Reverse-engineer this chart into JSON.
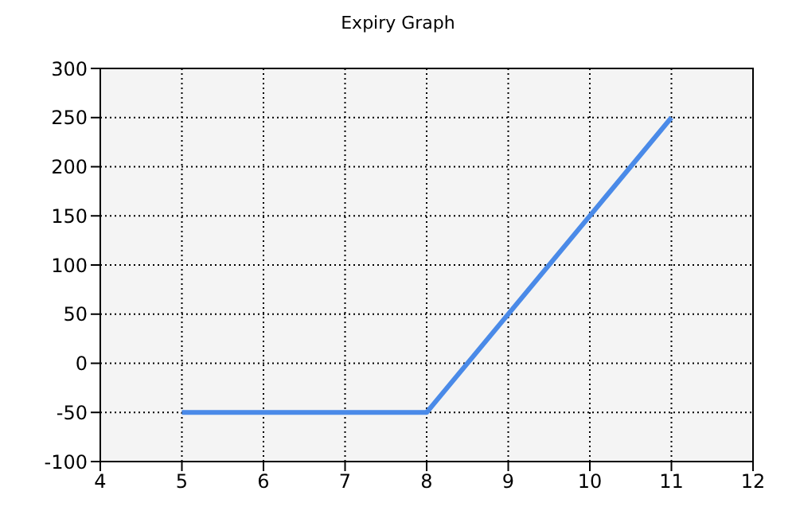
{
  "chart_data": {
    "type": "line",
    "title": "Expiry Graph",
    "x": [
      5,
      8,
      11
    ],
    "series": [
      {
        "color": "#4a8ae8",
        "values": [
          -50,
          -50,
          250
        ]
      }
    ],
    "xlim": [
      4,
      12
    ],
    "xticks": [
      4,
      5,
      6,
      7,
      8,
      9,
      10,
      11,
      12
    ],
    "ylim": [
      -100,
      300
    ],
    "yticks": [
      -100,
      -50,
      0,
      50,
      100,
      150,
      200,
      250,
      300
    ],
    "grid": true,
    "marker": "none",
    "line_style": "solid"
  }
}
